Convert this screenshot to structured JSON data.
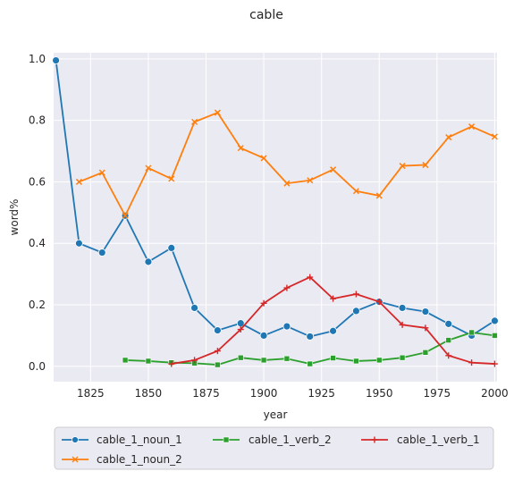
{
  "chart_data": {
    "type": "line",
    "title": "cable",
    "xlabel": "year",
    "ylabel": "word%",
    "xlim": [
      1809,
      2001
    ],
    "ylim": [
      -0.05,
      1.02
    ],
    "xticks": [
      "1825",
      "1850",
      "1875",
      "1900",
      "1925",
      "1950",
      "1975",
      "2000"
    ],
    "yticks": [
      "0.0",
      "0.2",
      "0.4",
      "0.6",
      "0.8",
      "1.0"
    ],
    "grid": true,
    "legend_position": "bottom",
    "series": [
      {
        "name": "cable_1_noun_1",
        "color": "#1f77b4",
        "marker": "circle",
        "x": [
          1810,
          1820,
          1830,
          1840,
          1850,
          1860,
          1870,
          1880,
          1890,
          1900,
          1910,
          1920,
          1930,
          1940,
          1950,
          1960,
          1970,
          1980,
          1990,
          2000
        ],
        "y": [
          0.995,
          0.4,
          0.37,
          0.49,
          0.34,
          0.385,
          0.19,
          0.117,
          0.14,
          0.1,
          0.13,
          0.097,
          0.115,
          0.18,
          0.21,
          0.19,
          0.178,
          0.138,
          0.1,
          0.148
        ]
      },
      {
        "name": "cable_1_noun_2",
        "color": "#ff7f0e",
        "marker": "x",
        "x": [
          1820,
          1830,
          1840,
          1850,
          1860,
          1870,
          1880,
          1890,
          1900,
          1910,
          1920,
          1930,
          1940,
          1950,
          1960,
          1970,
          1980,
          1990,
          2000
        ],
        "y": [
          0.6,
          0.63,
          0.49,
          0.645,
          0.61,
          0.795,
          0.825,
          0.71,
          0.677,
          0.595,
          0.605,
          0.64,
          0.57,
          0.555,
          0.652,
          0.655,
          0.745,
          0.78,
          0.747
        ]
      },
      {
        "name": "cable_1_verb_2",
        "color": "#2ca02c",
        "marker": "square",
        "x": [
          1840,
          1850,
          1860,
          1870,
          1880,
          1890,
          1900,
          1910,
          1920,
          1930,
          1940,
          1950,
          1960,
          1970,
          1980,
          1990,
          2000
        ],
        "y": [
          0.02,
          0.017,
          0.012,
          0.01,
          0.005,
          0.028,
          0.02,
          0.025,
          0.008,
          0.027,
          0.017,
          0.02,
          0.028,
          0.045,
          0.085,
          0.11,
          0.1
        ]
      },
      {
        "name": "cable_1_verb_1",
        "color": "#d62728",
        "marker": "plus",
        "x": [
          1860,
          1870,
          1880,
          1890,
          1900,
          1910,
          1920,
          1930,
          1940,
          1950,
          1960,
          1970,
          1980,
          1990,
          2000
        ],
        "y": [
          0.008,
          0.02,
          0.05,
          0.12,
          0.205,
          0.255,
          0.29,
          0.22,
          0.235,
          0.21,
          0.135,
          0.125,
          0.035,
          0.012,
          0.008
        ]
      }
    ]
  }
}
